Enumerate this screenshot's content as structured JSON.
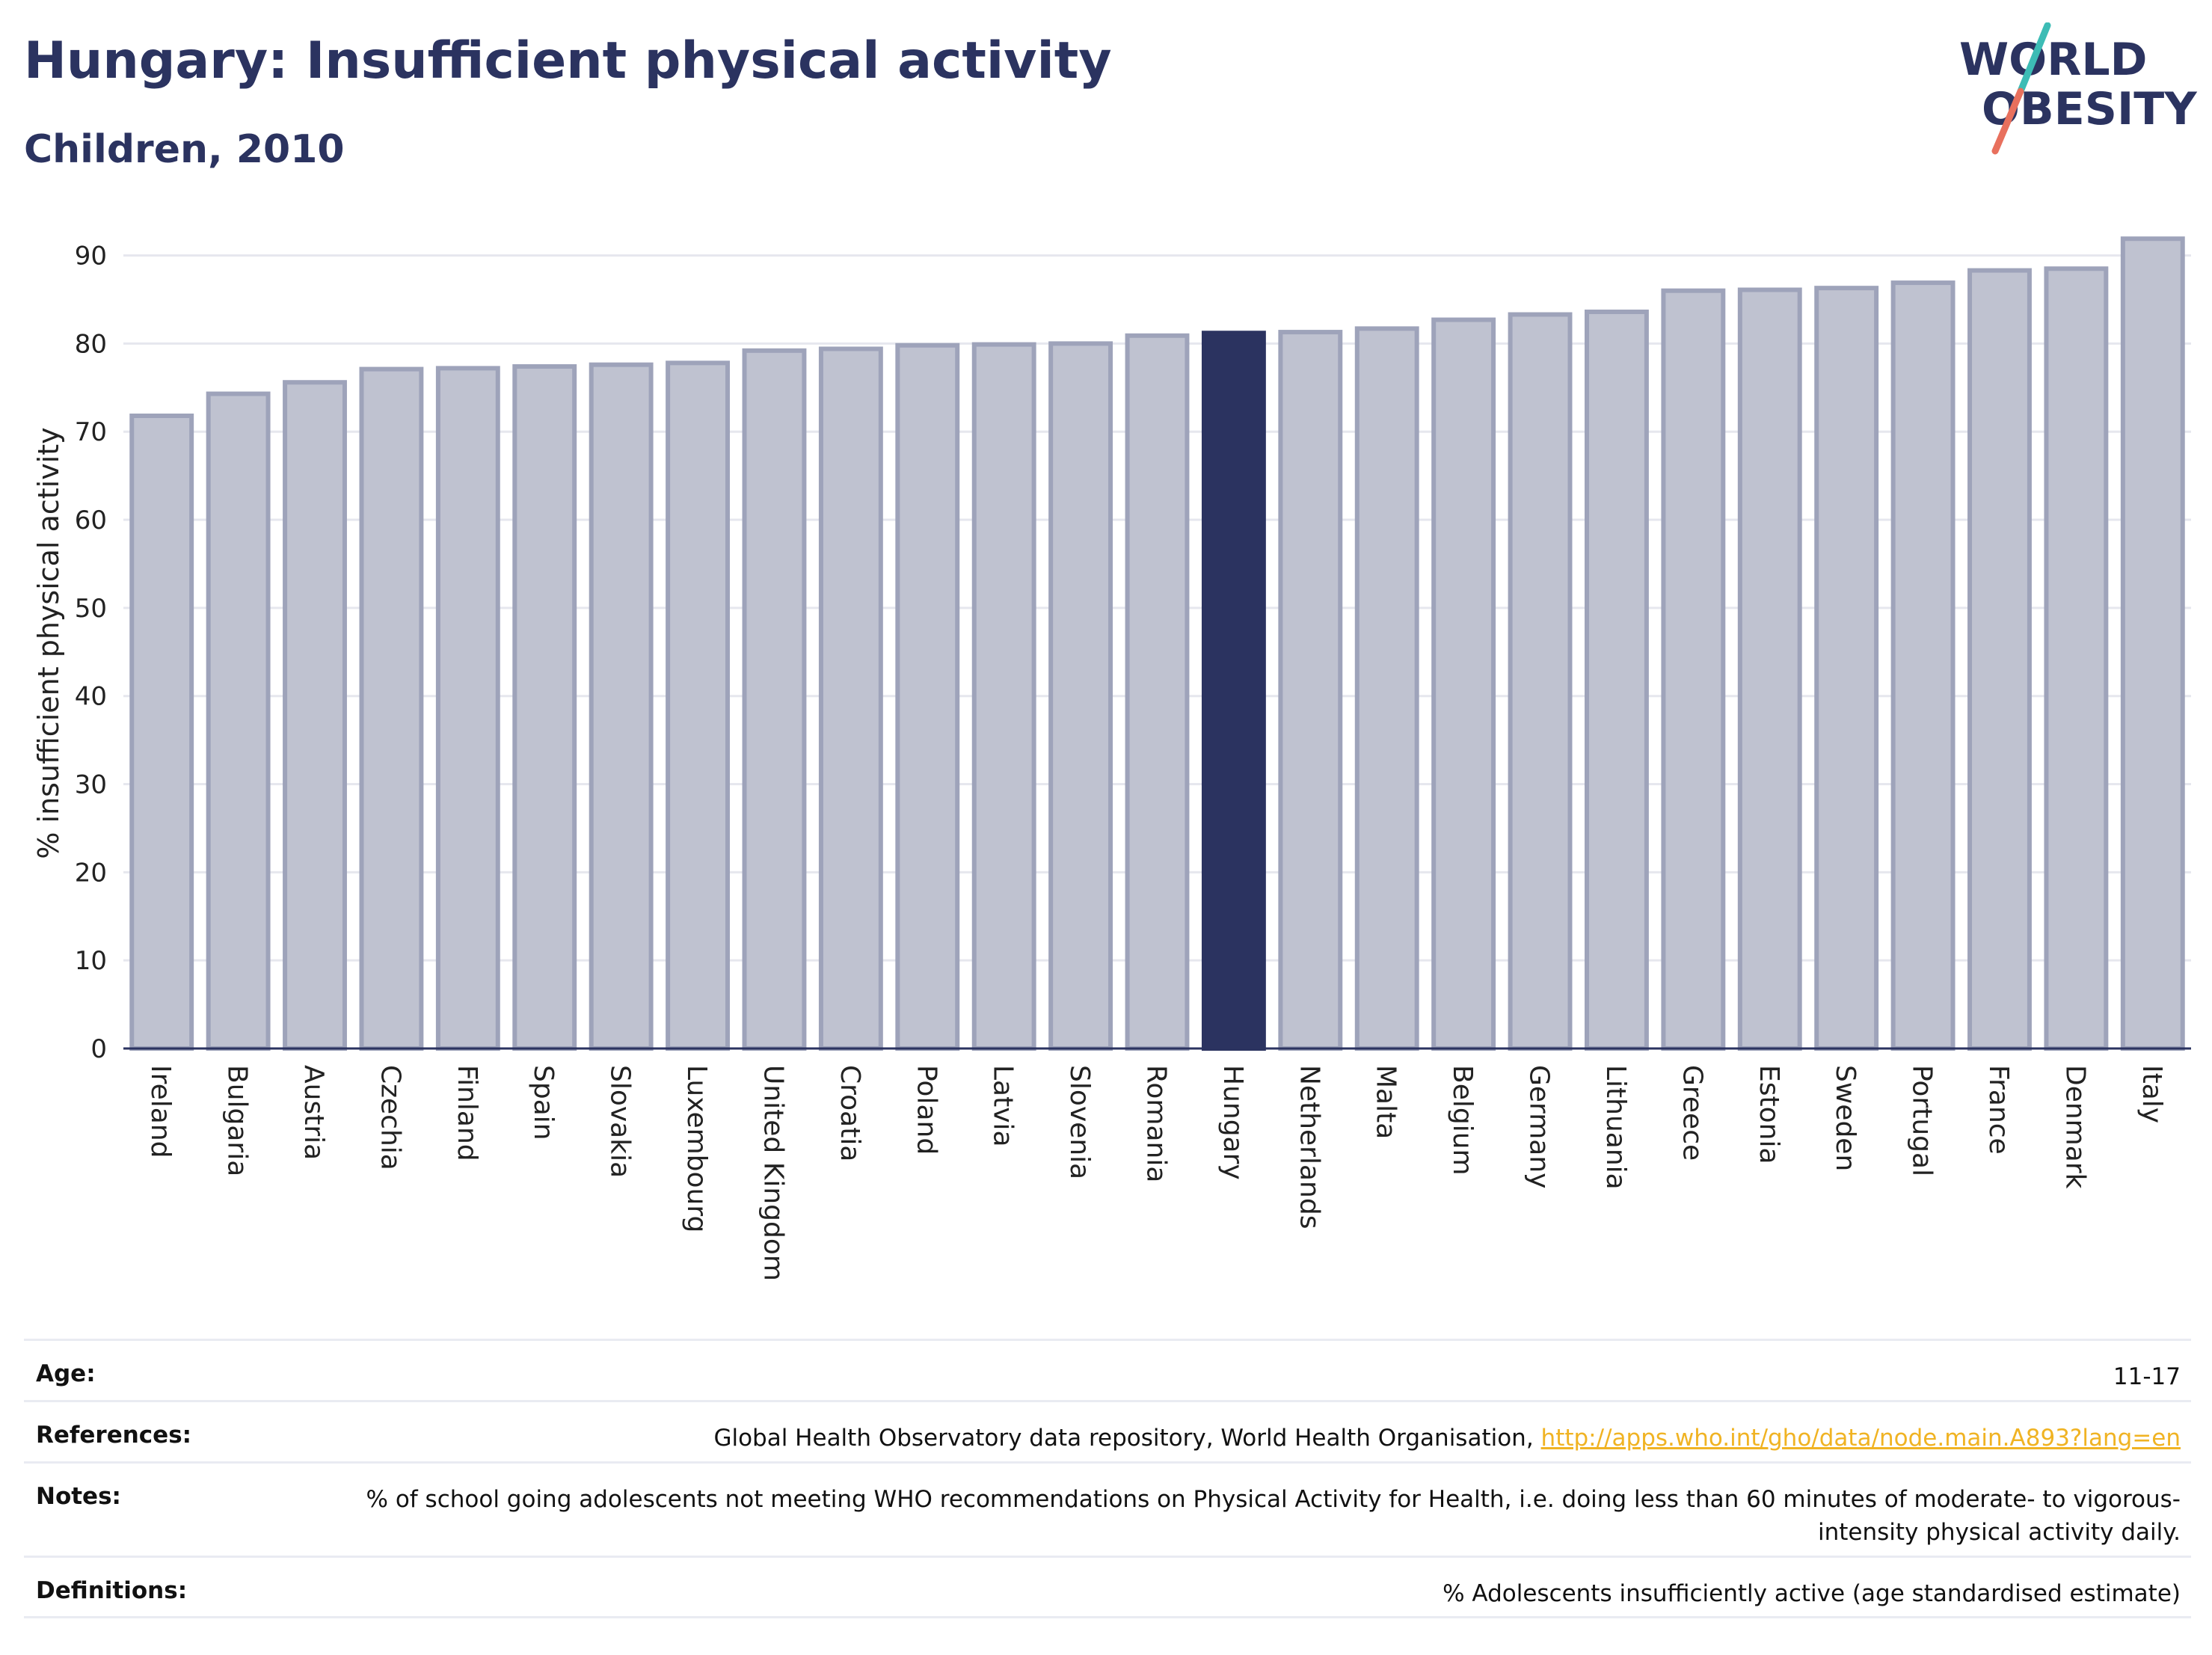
{
  "header": {
    "title": "Hungary: Insufficient physical activity",
    "subtitle": "Children, 2010"
  },
  "logo": {
    "line1": "WORLD",
    "line2": "OBESITY"
  },
  "colors": {
    "title": "#2b3360",
    "bar_default": "#bfc2d0",
    "bar_outline": "#9ea3ba",
    "bar_highlight": "#2b3360",
    "logo_teal": "#3dbcb5",
    "logo_coral": "#e8705d",
    "link": "#f0b323"
  },
  "chart_data": {
    "type": "bar",
    "ylabel": "% insufficient physical activity",
    "ylim": [
      0,
      92
    ],
    "yticks": [
      0,
      10,
      20,
      30,
      40,
      50,
      60,
      70,
      80,
      90
    ],
    "grid": true,
    "highlight": "Hungary",
    "categories": [
      "Ireland",
      "Bulgaria",
      "Austria",
      "Czechia",
      "Finland",
      "Spain",
      "Slovakia",
      "Luxembourg",
      "United Kingdom",
      "Croatia",
      "Poland",
      "Latvia",
      "Slovenia",
      "Romania",
      "Hungary",
      "Netherlands",
      "Malta",
      "Belgium",
      "Germany",
      "Lithuania",
      "Greece",
      "Estonia",
      "Sweden",
      "Portugal",
      "France",
      "Denmark",
      "Italy"
    ],
    "values": [
      71.8,
      74.3,
      75.6,
      77.1,
      77.2,
      77.4,
      77.6,
      77.8,
      79.2,
      79.4,
      79.8,
      79.9,
      80.0,
      80.9,
      81.2,
      81.3,
      81.7,
      82.7,
      83.3,
      83.6,
      86.0,
      86.1,
      86.3,
      86.9,
      88.3,
      88.5,
      91.9
    ]
  },
  "meta": {
    "age_label": "Age:",
    "age_value": "11-17",
    "references_label": "References:",
    "references_text": "Global Health Observatory data repository, World Health Organisation, ",
    "references_link": "http://apps.who.int/gho/data/node.main.A893?lang=en",
    "notes_label": "Notes:",
    "notes_value": "% of school going adolescents not meeting WHO recommendations on Physical Activity for Health, i.e. doing less than 60 minutes of moderate- to vigorous-intensity physical activity daily.",
    "definitions_label": "Definitions:",
    "definitions_value": "% Adolescents insufficiently active (age standardised estimate)"
  }
}
